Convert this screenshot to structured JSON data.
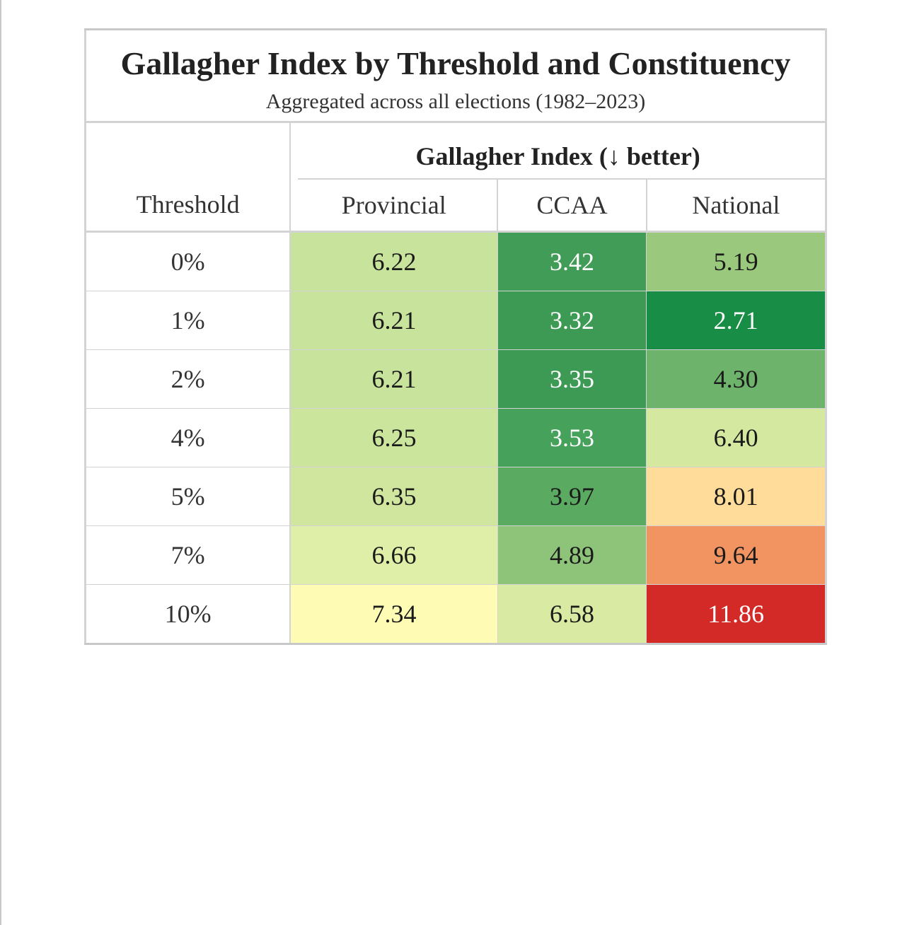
{
  "header": {
    "title": "Gallagher Index by Threshold and Constituency",
    "subtitle": "Aggregated across all elections (1982–2023)",
    "stub_label": "Threshold",
    "spanner_label": "Gallagher Index (↓ better)",
    "columns": [
      "Provincial",
      "CCAA",
      "National"
    ]
  },
  "rows": [
    {
      "threshold": "0%",
      "values": [
        "6.22",
        "3.42",
        "5.19"
      ],
      "colors": [
        "#c8e39b",
        "#419c57",
        "#9ac97d"
      ],
      "text_colors": [
        "#1a1a1a",
        "#ffffff",
        "#1a1a1a"
      ]
    },
    {
      "threshold": "1%",
      "values": [
        "6.21",
        "3.32",
        "2.71"
      ],
      "colors": [
        "#c8e39b",
        "#3c9a54",
        "#188d46"
      ],
      "text_colors": [
        "#1a1a1a",
        "#ffffff",
        "#ffffff"
      ]
    },
    {
      "threshold": "2%",
      "values": [
        "6.21",
        "3.35",
        "4.30"
      ],
      "colors": [
        "#c8e39b",
        "#3c9a54",
        "#6db36c"
      ],
      "text_colors": [
        "#1a1a1a",
        "#ffffff",
        "#1a1a1a"
      ]
    },
    {
      "threshold": "4%",
      "values": [
        "6.25",
        "3.53",
        "6.40"
      ],
      "colors": [
        "#cbe59c",
        "#46a15a",
        "#d4e8a0"
      ],
      "text_colors": [
        "#1a1a1a",
        "#ffffff",
        "#1a1a1a"
      ]
    },
    {
      "threshold": "5%",
      "values": [
        "6.35",
        "3.97",
        "8.01"
      ],
      "colors": [
        "#d0e69e",
        "#5aaa62",
        "#ffdc9a"
      ],
      "text_colors": [
        "#1a1a1a",
        "#1a1a1a",
        "#1a1a1a"
      ]
    },
    {
      "threshold": "7%",
      "values": [
        "6.66",
        "4.89",
        "9.64"
      ],
      "colors": [
        "#e0efa8",
        "#8dc47a",
        "#f29462"
      ],
      "text_colors": [
        "#1a1a1a",
        "#1a1a1a",
        "#1a1a1a"
      ]
    },
    {
      "threshold": "10%",
      "values": [
        "7.34",
        "6.58",
        "11.86"
      ],
      "colors": [
        "#fefbb5",
        "#d9eaa3",
        "#d42a27"
      ],
      "text_colors": [
        "#1a1a1a",
        "#1a1a1a",
        "#ffffff"
      ]
    }
  ],
  "chart_data": {
    "type": "heatmap",
    "title": "Gallagher Index by Threshold and Constituency",
    "subtitle": "Aggregated across all elections (1982–2023)",
    "row_label": "Threshold",
    "column_group_label": "Gallagher Index (↓ better)",
    "rows": [
      "0%",
      "1%",
      "2%",
      "4%",
      "5%",
      "7%",
      "10%"
    ],
    "columns": [
      "Provincial",
      "CCAA",
      "National"
    ],
    "values": [
      [
        6.22,
        3.42,
        5.19
      ],
      [
        6.21,
        3.32,
        2.71
      ],
      [
        6.21,
        3.35,
        4.3
      ],
      [
        6.25,
        3.53,
        6.4
      ],
      [
        6.35,
        3.97,
        8.01
      ],
      [
        6.66,
        4.89,
        9.64
      ],
      [
        7.34,
        6.58,
        11.86
      ]
    ],
    "color_scale": "green-yellow-red (low = green, high = red)"
  }
}
